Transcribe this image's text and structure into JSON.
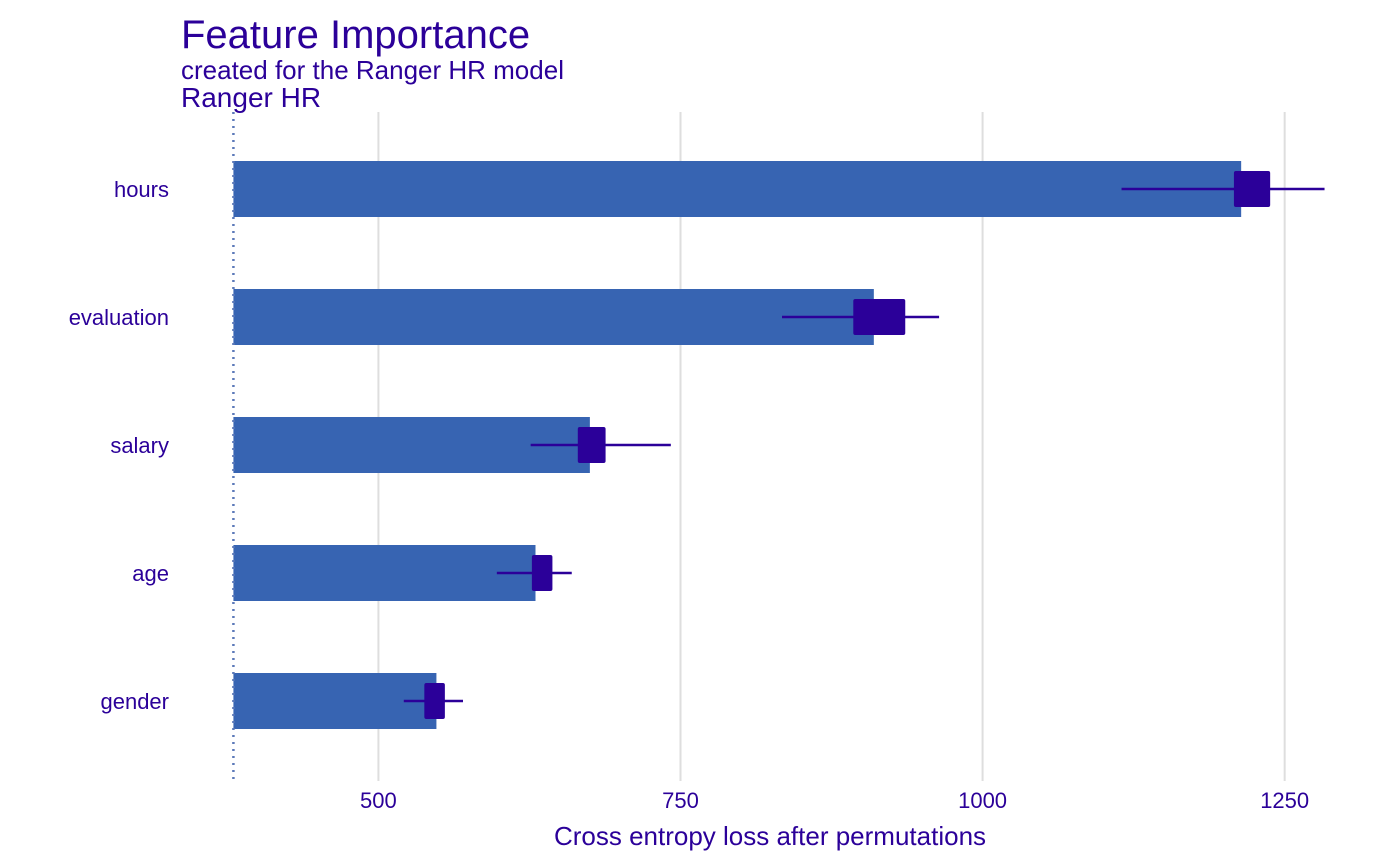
{
  "chart_data": {
    "type": "bar",
    "title": "Feature Importance",
    "subtitle": "created for the Ranger HR model",
    "model_label": "Ranger HR",
    "xlabel": "Cross entropy loss after permutations",
    "ylabel": "",
    "xlim": [
      378,
      1290
    ],
    "baseline": 380,
    "x_ticks": [
      500,
      750,
      1000,
      1250
    ],
    "x_tick_labels": [
      "500",
      "750",
      "1000",
      "1250"
    ],
    "categories": [
      "hours",
      "evaluation",
      "salary",
      "age",
      "gender"
    ],
    "values": [
      1214,
      910,
      675,
      630,
      548
    ],
    "boxplot": [
      {
        "min": 1115,
        "q1": 1208,
        "q3": 1238,
        "max": 1283
      },
      {
        "min": 834,
        "q1": 893,
        "q3": 936,
        "max": 964
      },
      {
        "min": 626,
        "q1": 665,
        "q3": 688,
        "max": 742
      },
      {
        "min": 598,
        "q1": 627,
        "q3": 644,
        "max": 660
      },
      {
        "min": 521,
        "q1": 538,
        "q3": 555,
        "max": 570
      }
    ],
    "grid": true,
    "legend": "none",
    "colors": {
      "bar": "#3764b2",
      "box": "#2b0099",
      "grid": "#dedede",
      "baseline": "#5c79b9",
      "text": "#2b0099"
    }
  }
}
